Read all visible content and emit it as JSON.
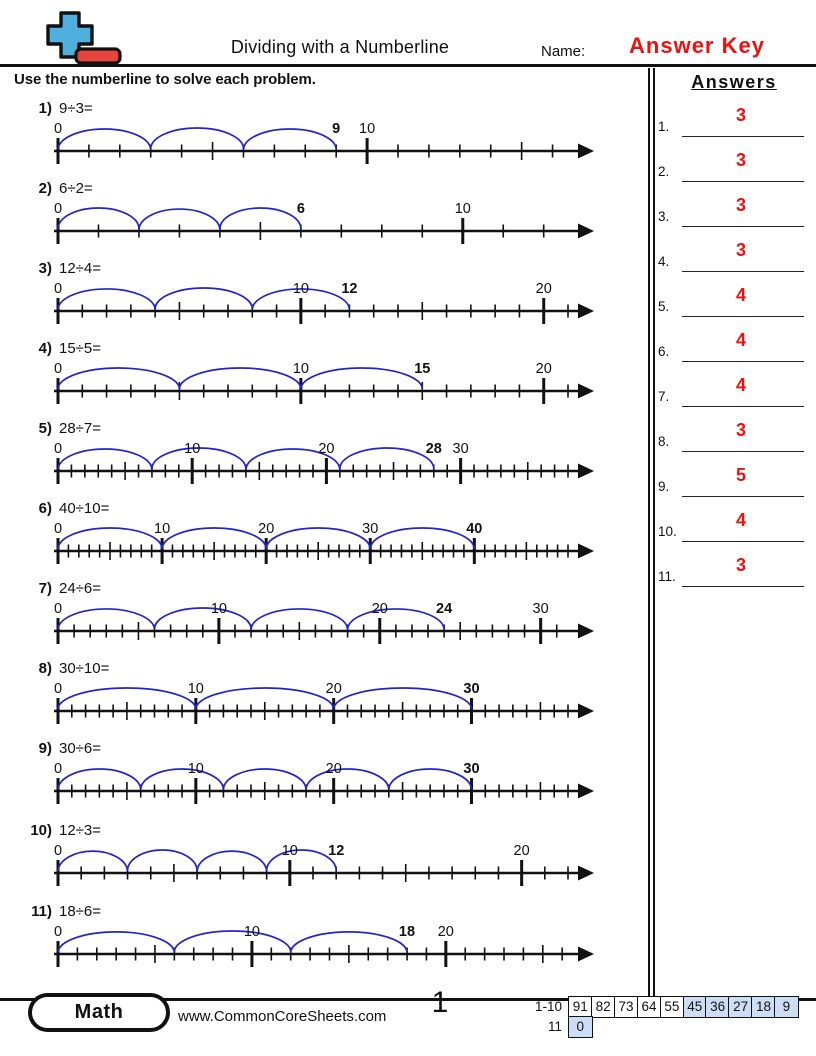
{
  "header": {
    "title": "Dividing with a Numberline",
    "name_label": "Name:",
    "name_value": "Answer Key",
    "instructions": "Use the numberline to solve each problem."
  },
  "answers_panel": {
    "title": "Answers",
    "items": [
      {
        "label": "1.",
        "value": "3"
      },
      {
        "label": "2.",
        "value": "3"
      },
      {
        "label": "3.",
        "value": "3"
      },
      {
        "label": "4.",
        "value": "3"
      },
      {
        "label": "5.",
        "value": "4"
      },
      {
        "label": "6.",
        "value": "4"
      },
      {
        "label": "7.",
        "value": "4"
      },
      {
        "label": "8.",
        "value": "3"
      },
      {
        "label": "9.",
        "value": "5"
      },
      {
        "label": "10.",
        "value": "4"
      },
      {
        "label": "11.",
        "value": "3"
      }
    ]
  },
  "problems": [
    {
      "number": "1)",
      "expression": "9÷3=",
      "dividend": 9,
      "divisor": 3,
      "quotient": 3,
      "jumps": 3,
      "jump_size": 3,
      "axis_max": 16.5,
      "labels": [
        {
          "v": 0,
          "text": "0"
        },
        {
          "v": 9,
          "text": "9",
          "bold": true
        },
        {
          "v": 10,
          "text": "10"
        }
      ]
    },
    {
      "number": "2)",
      "expression": "6÷2=",
      "dividend": 6,
      "divisor": 2,
      "quotient": 3,
      "jumps": 3,
      "jump_size": 2,
      "axis_max": 12.6,
      "labels": [
        {
          "v": 0,
          "text": "0"
        },
        {
          "v": 6,
          "text": "6",
          "bold": true
        },
        {
          "v": 10,
          "text": "10"
        }
      ]
    },
    {
      "number": "3)",
      "expression": "12÷4=",
      "dividend": 12,
      "divisor": 4,
      "quotient": 3,
      "jumps": 3,
      "jump_size": 4,
      "axis_max": 21,
      "labels": [
        {
          "v": 0,
          "text": "0"
        },
        {
          "v": 10,
          "text": "10"
        },
        {
          "v": 12,
          "text": "12",
          "bold": true
        },
        {
          "v": 20,
          "text": "20"
        }
      ]
    },
    {
      "number": "4)",
      "expression": "15÷5=",
      "dividend": 15,
      "divisor": 5,
      "quotient": 3,
      "jumps": 3,
      "jump_size": 5,
      "axis_max": 21,
      "labels": [
        {
          "v": 0,
          "text": "0"
        },
        {
          "v": 10,
          "text": "10"
        },
        {
          "v": 15,
          "text": "15",
          "bold": true
        },
        {
          "v": 20,
          "text": "20"
        }
      ]
    },
    {
      "number": "5)",
      "expression": "28÷7=",
      "dividend": 28,
      "divisor": 7,
      "quotient": 4,
      "jumps": 4,
      "jump_size": 7,
      "axis_max": 38,
      "labels": [
        {
          "v": 0,
          "text": "0"
        },
        {
          "v": 10,
          "text": "10"
        },
        {
          "v": 20,
          "text": "20"
        },
        {
          "v": 28,
          "text": "28",
          "bold": true
        },
        {
          "v": 30,
          "text": "30"
        }
      ]
    },
    {
      "number": "6)",
      "expression": "40÷10=",
      "dividend": 40,
      "divisor": 10,
      "quotient": 4,
      "jumps": 4,
      "jump_size": 10,
      "axis_max": 49,
      "labels": [
        {
          "v": 0,
          "text": "0"
        },
        {
          "v": 10,
          "text": "10"
        },
        {
          "v": 20,
          "text": "20"
        },
        {
          "v": 30,
          "text": "30"
        },
        {
          "v": 40,
          "text": "40",
          "bold": true
        }
      ]
    },
    {
      "number": "7)",
      "expression": "24÷6=",
      "dividend": 24,
      "divisor": 6,
      "quotient": 4,
      "jumps": 4,
      "jump_size": 6,
      "axis_max": 31.7,
      "labels": [
        {
          "v": 0,
          "text": "0"
        },
        {
          "v": 10,
          "text": "10"
        },
        {
          "v": 20,
          "text": "20"
        },
        {
          "v": 24,
          "text": "24",
          "bold": true
        },
        {
          "v": 30,
          "text": "30"
        }
      ]
    },
    {
      "number": "8)",
      "expression": "30÷10=",
      "dividend": 30,
      "divisor": 10,
      "quotient": 3,
      "jumps": 3,
      "jump_size": 10,
      "axis_max": 37,
      "labels": [
        {
          "v": 0,
          "text": "0"
        },
        {
          "v": 10,
          "text": "10"
        },
        {
          "v": 20,
          "text": "20"
        },
        {
          "v": 30,
          "text": "30",
          "bold": true
        }
      ]
    },
    {
      "number": "9)",
      "expression": "30÷6=",
      "dividend": 30,
      "divisor": 6,
      "quotient": 5,
      "jumps": 5,
      "jump_size": 6,
      "axis_max": 37,
      "labels": [
        {
          "v": 0,
          "text": "0"
        },
        {
          "v": 10,
          "text": "10"
        },
        {
          "v": 20,
          "text": "20"
        },
        {
          "v": 30,
          "text": "30",
          "bold": true
        }
      ]
    },
    {
      "number": "10)",
      "expression": "12÷3=",
      "dividend": 12,
      "divisor": 3,
      "quotient": 4,
      "jumps": 4,
      "jump_size": 3,
      "axis_max": 22,
      "labels": [
        {
          "v": 0,
          "text": "0"
        },
        {
          "v": 10,
          "text": "10"
        },
        {
          "v": 12,
          "text": "12",
          "bold": true
        },
        {
          "v": 20,
          "text": "20"
        }
      ]
    },
    {
      "number": "11)",
      "expression": "18÷6=",
      "dividend": 18,
      "divisor": 6,
      "quotient": 3,
      "jumps": 3,
      "jump_size": 6,
      "axis_max": 26.3,
      "labels": [
        {
          "v": 0,
          "text": "0"
        },
        {
          "v": 10,
          "text": "10"
        },
        {
          "v": 18,
          "text": "18",
          "bold": true
        },
        {
          "v": 20,
          "text": "20"
        }
      ]
    }
  ],
  "footer": {
    "subject_badge": "Math",
    "website": "www.CommonCoreSheets.com",
    "page_number": "1",
    "grading_table": {
      "rows": [
        {
          "label": "1-10",
          "cells": [
            {
              "text": "91",
              "highlight": false
            },
            {
              "text": "82",
              "highlight": false
            },
            {
              "text": "73",
              "highlight": false
            },
            {
              "text": "64",
              "highlight": false
            },
            {
              "text": "55",
              "highlight": false
            },
            {
              "text": "45",
              "highlight": true
            },
            {
              "text": "36",
              "highlight": true
            },
            {
              "text": "27",
              "highlight": true
            },
            {
              "text": "18",
              "highlight": true
            },
            {
              "text": "9",
              "highlight": true
            }
          ]
        },
        {
          "label": "11",
          "cells": [
            {
              "text": "0",
              "highlight": true
            }
          ]
        }
      ]
    }
  },
  "colors": {
    "answer_red": "#ee1111",
    "arc_blue": "#2323cd",
    "grade_highlight": "#cdddf5",
    "logo_blue": "#4fb0dd",
    "logo_red": "#e8453f"
  }
}
